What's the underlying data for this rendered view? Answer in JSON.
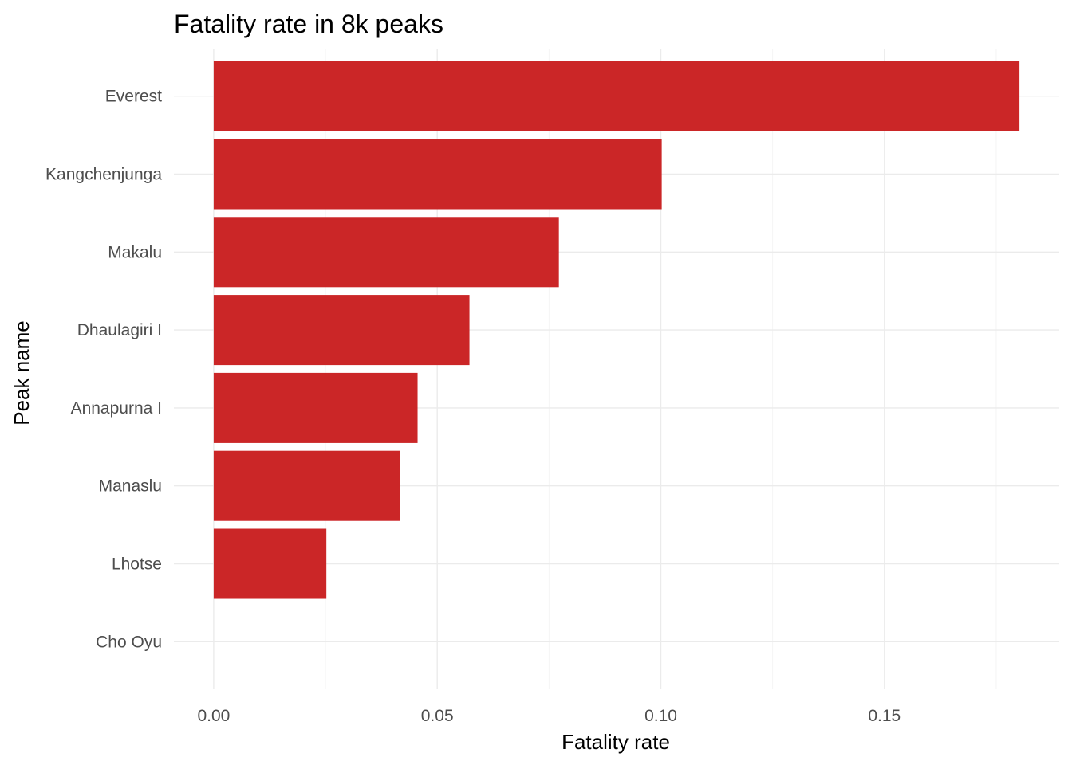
{
  "chart_data": {
    "type": "bar",
    "orientation": "horizontal",
    "title": "Fatality rate in 8k peaks",
    "xlabel": "Fatality rate",
    "ylabel": "Peak name",
    "categories": [
      "Everest",
      "Kangchenjunga",
      "Makalu",
      "Dhaulagiri I",
      "Annapurna I",
      "Manaslu",
      "Lhotse",
      "Cho Oyu"
    ],
    "values": [
      0.1802,
      0.1002,
      0.0772,
      0.0572,
      0.0456,
      0.0417,
      0.0252,
      0.0
    ],
    "xlim": [
      -0.0089,
      0.1891
    ],
    "xticks": [
      0.0,
      0.05,
      0.1,
      0.15
    ],
    "xtick_labels": [
      "0.00",
      "0.05",
      "0.10",
      "0.15"
    ],
    "bar_color": "#cb2627",
    "grid": true,
    "legend": "none"
  }
}
